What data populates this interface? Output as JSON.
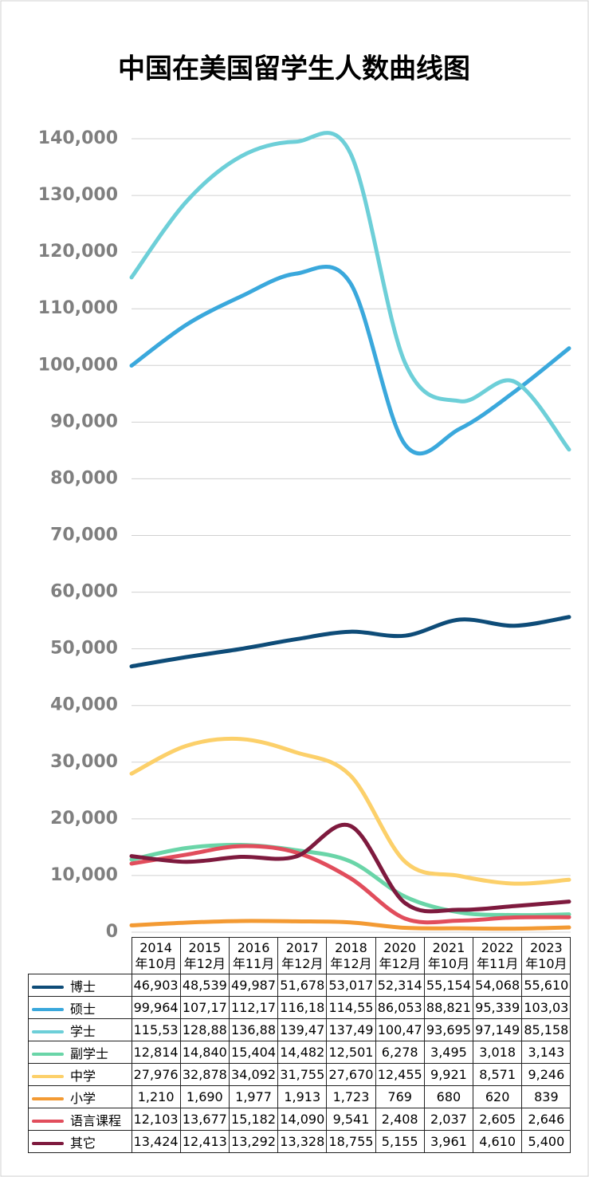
{
  "chart_data": {
    "type": "line",
    "title": "中国在美国留学生人数曲线图",
    "categories": [
      "2014\n年10月",
      "2015\n年12月",
      "2016\n年11月",
      "2017\n年12月",
      "2018\n年12月",
      "2020\n年12月",
      "2021\n年10月",
      "2022\n年11月",
      "2023\n年10月"
    ],
    "ylim": [
      0,
      140000
    ],
    "yticks": [
      0,
      {
        "value": 10000,
        "label": "10,000"
      },
      {
        "value": 20000,
        "label": "20,000"
      },
      {
        "value": 30000,
        "label": "30,000"
      },
      {
        "value": 40000,
        "label": "40,000"
      },
      {
        "value": 50000,
        "label": "50,000"
      },
      {
        "value": 60000,
        "label": "60,000"
      },
      {
        "value": 70000,
        "label": "70,000"
      },
      {
        "value": 80000,
        "label": "80,000"
      },
      {
        "value": 90000,
        "label": "90,000"
      },
      {
        "value": 100000,
        "label": "100,000"
      },
      {
        "value": 110000,
        "label": "110,000"
      },
      {
        "value": 120000,
        "label": "120,000"
      },
      {
        "value": 130000,
        "label": "130,000"
      },
      {
        "value": 140000,
        "label": "140,000"
      }
    ],
    "grid": true,
    "series": [
      {
        "name": "博士",
        "color": "#0e4c78",
        "values": [
          46903,
          48539,
          49987,
          51678,
          53017,
          52314,
          55154,
          54068,
          55610
        ],
        "value_labels": [
          "46,903",
          "48,539",
          "49,987",
          "51,678",
          "53,017",
          "52,314",
          "55,154",
          "54,068",
          "55,610"
        ]
      },
      {
        "name": "硕士",
        "color": "#3aa8dc",
        "values": [
          99964,
          107170,
          112170,
          116180,
          114550,
          86053,
          88821,
          95339,
          103030
        ],
        "value_labels": [
          "99,964",
          "107,17",
          "112,17",
          "116,18",
          "114,55",
          "86,053",
          "88,821",
          "95,339",
          "103,03"
        ]
      },
      {
        "name": "学士",
        "color": "#6dcfd8",
        "values": [
          115530,
          128880,
          136880,
          139470,
          137490,
          100470,
          93695,
          97149,
          85158
        ],
        "value_labels": [
          "115,53",
          "128,88",
          "136,88",
          "139,47",
          "137,49",
          "100,47",
          "93,695",
          "97,149",
          "85,158"
        ]
      },
      {
        "name": "副学士",
        "color": "#6ad5a8",
        "values": [
          12814,
          14840,
          15404,
          14482,
          12501,
          6278,
          3495,
          3018,
          3143
        ],
        "value_labels": [
          "12,814",
          "14,840",
          "15,404",
          "14,482",
          "12,501",
          "6,278",
          "3,495",
          "3,018",
          "3,143"
        ]
      },
      {
        "name": "中学",
        "color": "#fcd06a",
        "values": [
          27976,
          32878,
          34092,
          31755,
          27670,
          12455,
          9921,
          8571,
          9246
        ],
        "value_labels": [
          "27,976",
          "32,878",
          "34,092",
          "31,755",
          "27,670",
          "12,455",
          "9,921",
          "8,571",
          "9,246"
        ]
      },
      {
        "name": "小学",
        "color": "#f39a33",
        "values": [
          1210,
          1690,
          1977,
          1913,
          1723,
          769,
          680,
          620,
          839
        ],
        "value_labels": [
          "1,210",
          "1,690",
          "1,977",
          "1,913",
          "1,723",
          "769",
          "680",
          "620",
          "839"
        ]
      },
      {
        "name": "语言课程",
        "color": "#e14d5c",
        "values": [
          12103,
          13677,
          15182,
          14090,
          9541,
          2408,
          2037,
          2605,
          2646
        ],
        "value_labels": [
          "12,103",
          "13,677",
          "15,182",
          "14,090",
          "9,541",
          "2,408",
          "2,037",
          "2,605",
          "2,646"
        ]
      },
      {
        "name": "其它",
        "color": "#7e1a3e",
        "values": [
          13424,
          12413,
          13292,
          13328,
          18755,
          5155,
          3961,
          4610,
          5400
        ],
        "value_labels": [
          "13,424",
          "12,413",
          "13,292",
          "13,328",
          "18,755",
          "5,155",
          "3,961",
          "4,610",
          "5,400"
        ]
      }
    ]
  }
}
